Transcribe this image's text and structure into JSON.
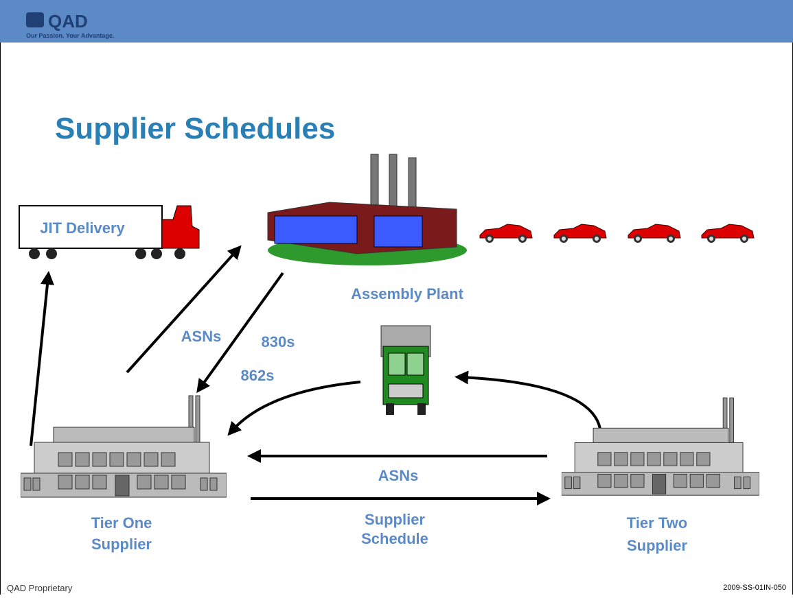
{
  "header": {
    "logo": "QAD",
    "tagline": "Our Passion. Your Advantage."
  },
  "title": "Supplier Schedules",
  "nodes": {
    "truck": {
      "label": "JIT Delivery"
    },
    "assembly_plant": {
      "label": "Assembly Plant"
    },
    "tier_one": {
      "label": [
        "Tier One",
        "Supplier"
      ]
    },
    "tier_two": {
      "label": [
        "Tier Two",
        "Supplier"
      ]
    }
  },
  "edges": {
    "asns_to_plant": "ASNs",
    "forecast": "830s",
    "shipping_schedule": "862s",
    "asns_tier": "ASNs",
    "supplier_schedule": [
      "Supplier",
      "Schedule"
    ]
  },
  "footer": {
    "left": "QAD Proprietary",
    "right": "2009-SS-01IN-050"
  }
}
